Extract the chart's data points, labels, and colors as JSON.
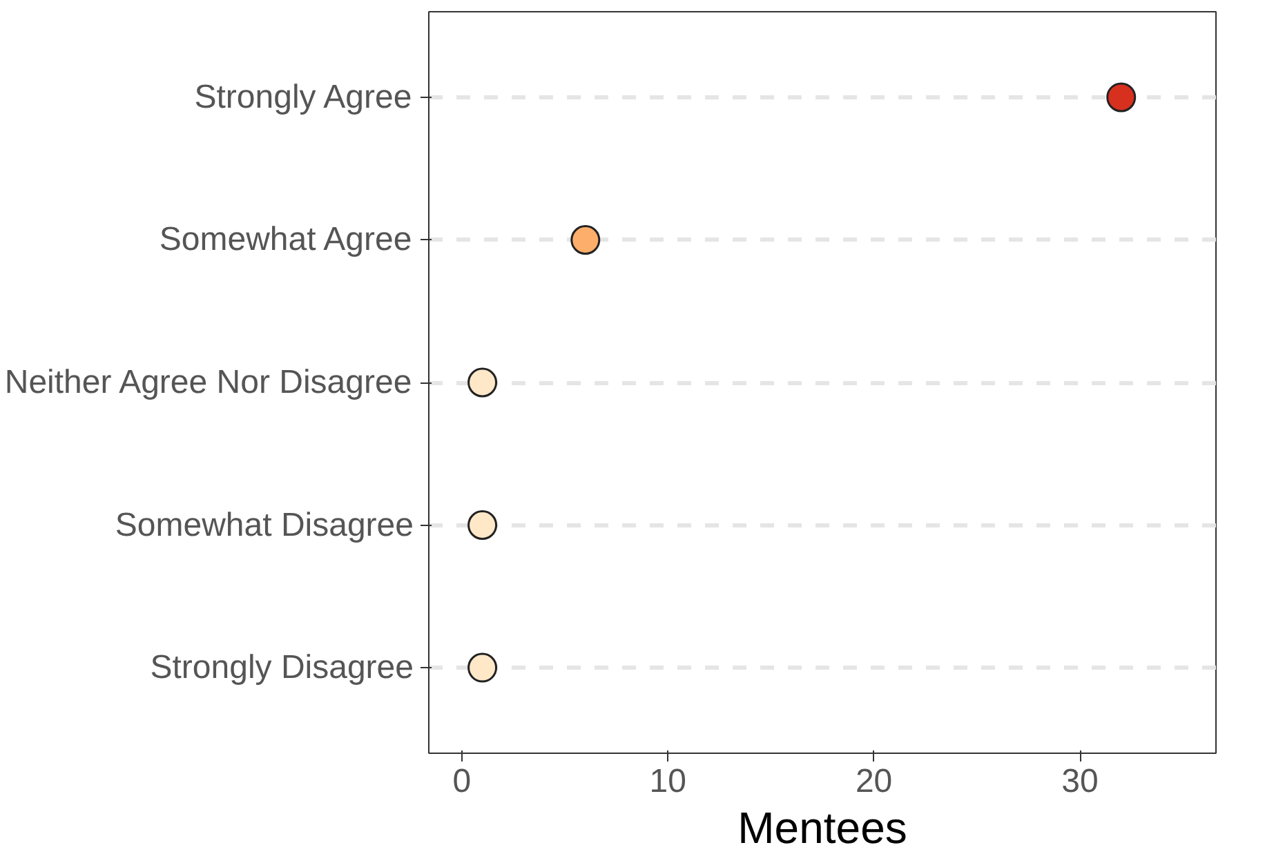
{
  "chart_data": {
    "type": "scatter",
    "orientation": "horizontal",
    "xlabel": "Mentees",
    "categories": [
      "Strongly Agree",
      "Somewhat Agree",
      "Neither Agree Nor Disagree",
      "Somewhat Disagree",
      "Strongly Disagree"
    ],
    "values": [
      32,
      6,
      1,
      1,
      1
    ],
    "colors": [
      "#d7301f",
      "#fdae6b",
      "#fee8c8",
      "#fee8c8",
      "#fee8c8"
    ],
    "xlim": [
      -1.6,
      36.6
    ],
    "xticks": [
      0,
      10,
      20,
      30
    ],
    "grid": "y",
    "marker": "circle"
  }
}
